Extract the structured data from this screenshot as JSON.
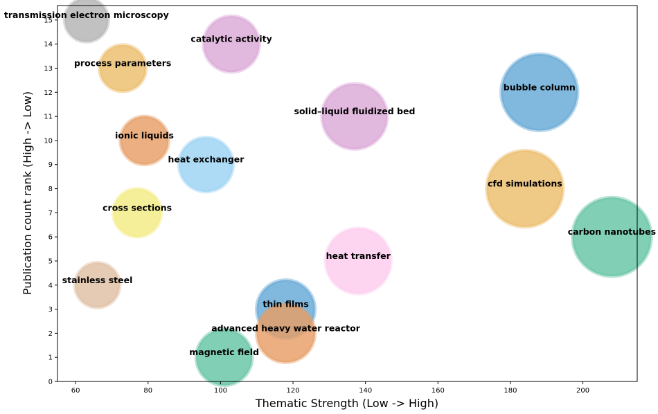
{
  "chart_data": {
    "type": "scatter",
    "title": "",
    "xlabel": "Thematic Strength (Low -> High)",
    "ylabel": "Publication count rank (High -> Low)",
    "xlim": [
      55,
      215
    ],
    "ylim": [
      0,
      15.6
    ],
    "x_ticks": [
      60,
      80,
      100,
      120,
      140,
      160,
      180,
      200
    ],
    "y_ticks": [
      0,
      1,
      2,
      3,
      4,
      5,
      6,
      7,
      8,
      9,
      10,
      11,
      12,
      13,
      14,
      15
    ],
    "grid": false,
    "points": [
      {
        "label": "transmission electron microscopy",
        "x": 63,
        "y": 15,
        "size": 13.4,
        "color": "#b3b3b3"
      },
      {
        "label": "catalytic activity",
        "x": 103,
        "y": 14,
        "size": 17.2,
        "color": "#dba8d7"
      },
      {
        "label": "process parameters",
        "x": 73,
        "y": 13,
        "size": 14.3,
        "color": "#ecbd6b"
      },
      {
        "label": "bubble column",
        "x": 188,
        "y": 12,
        "size": 23.5,
        "color": "#65a8d5"
      },
      {
        "label": "solid–liquid fluidized bed",
        "x": 137,
        "y": 11,
        "size": 20.1,
        "color": "#dba8d7"
      },
      {
        "label": "ionic liquids",
        "x": 79,
        "y": 10,
        "size": 14.8,
        "color": "#e69e65"
      },
      {
        "label": "heat exchanger",
        "x": 96,
        "y": 9,
        "size": 16.7,
        "color": "#9bd3f3"
      },
      {
        "label": "cfd simulations",
        "x": 184,
        "y": 8,
        "size": 23.5,
        "color": "#ecbd6b"
      },
      {
        "label": "cross sections",
        "x": 77,
        "y": 7,
        "size": 14.8,
        "color": "#f4eb84"
      },
      {
        "label": "carbon nanotubes",
        "x": 208,
        "y": 6,
        "size": 24.2,
        "color": "#65c4a4"
      },
      {
        "label": "heat transfer",
        "x": 138,
        "y": 5,
        "size": 20.1,
        "color": "#fcccee"
      },
      {
        "label": "stainless steel",
        "x": 66,
        "y": 4,
        "size": 13.8,
        "color": "#dfbfa4"
      },
      {
        "label": "thin films",
        "x": 118,
        "y": 3,
        "size": 17.9,
        "color": "#65a8d5"
      },
      {
        "label": "advanced heavy water reactor",
        "x": 118,
        "y": 2,
        "size": 17.9,
        "color": "#e69e65"
      },
      {
        "label": "magnetic field",
        "x": 101,
        "y": 1,
        "size": 17.2,
        "color": "#65c4a4"
      }
    ]
  }
}
